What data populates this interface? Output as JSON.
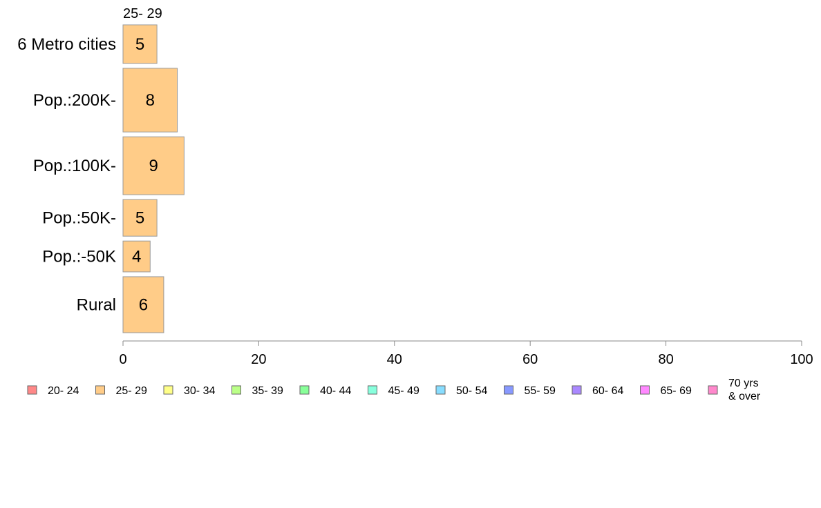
{
  "chart_data": {
    "type": "bar",
    "orientation": "horizontal",
    "stacked": true,
    "categories": [
      "6 Metro cities",
      "Pop.:200K-",
      "Pop.:100K-",
      "Pop.:50K-",
      "Pop.:-50K",
      "Rural"
    ],
    "bar_weights": [
      1.0,
      1.65,
      1.5,
      0.95,
      0.8,
      1.45
    ],
    "series": [
      {
        "name": "25- 29",
        "values": [
          5,
          8,
          9,
          5,
          4,
          6
        ],
        "labels": [
          "5",
          "8",
          "9",
          "5",
          "4",
          "6"
        ],
        "color": "#ffcc88"
      }
    ],
    "top_label": "25- 29",
    "xlim": [
      0,
      100
    ],
    "x_ticks": [
      "0",
      "20",
      "40",
      "60",
      "80",
      "100"
    ],
    "grid": false,
    "legend_position": "bottom",
    "legend": [
      {
        "label": "20- 24",
        "color": "#ff8888"
      },
      {
        "label": "25- 29",
        "color": "#ffcc88"
      },
      {
        "label": "30- 34",
        "color": "#ffff88"
      },
      {
        "label": "35- 39",
        "color": "#bbff88"
      },
      {
        "label": "40- 44",
        "color": "#88ff99"
      },
      {
        "label": "45- 49",
        "color": "#88ffdd"
      },
      {
        "label": "50- 54",
        "color": "#88ddff"
      },
      {
        "label": "55- 59",
        "color": "#8899ff"
      },
      {
        "label": "60- 64",
        "color": "#aa88ff"
      },
      {
        "label": "65- 69",
        "color": "#ff88ff"
      },
      {
        "label": "70 yrs\n& over",
        "color": "#ff88cc"
      }
    ]
  }
}
